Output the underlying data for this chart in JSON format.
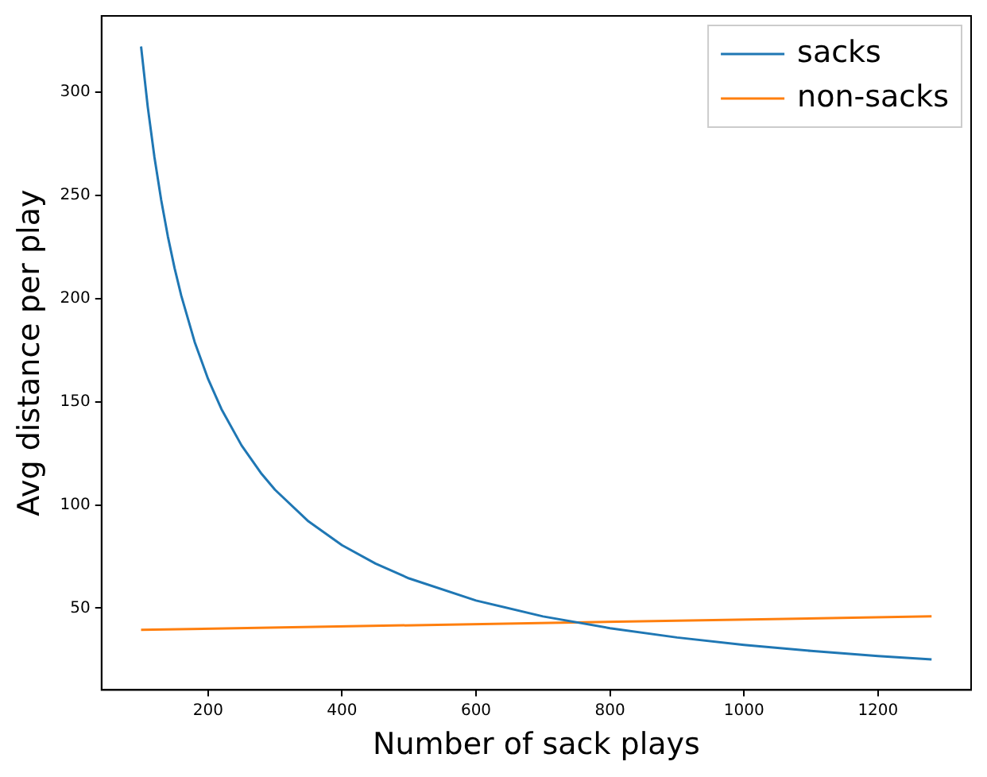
{
  "chart_data": {
    "type": "line",
    "xlabel": "Number of sack plays",
    "ylabel": "Avg distance per play",
    "series": [
      {
        "name": "sacks",
        "color": "#1f77b4",
        "x": [
          100,
          110,
          120,
          130,
          140,
          150,
          160,
          180,
          200,
          220,
          250,
          280,
          300,
          350,
          400,
          450,
          500,
          600,
          700,
          800,
          900,
          1000,
          1100,
          1200,
          1280
        ],
        "values": [
          322,
          292.7,
          268.3,
          247.7,
          230,
          214.7,
          201.3,
          178.9,
          161,
          146.4,
          128.8,
          115,
          107.3,
          92,
          80.5,
          71.6,
          64.4,
          53.7,
          46,
          40.3,
          35.8,
          32.2,
          29.3,
          26.8,
          25.2
        ]
      },
      {
        "name": "non-sacks",
        "color": "#ff7f0e",
        "x": [
          100,
          1280
        ],
        "values": [
          39.5,
          46
        ]
      }
    ],
    "xlim": [
      41,
      1339
    ],
    "xticks": [
      200,
      400,
      600,
      800,
      1000,
      1200
    ],
    "ylim": [
      10.4,
      336.8
    ],
    "yticks": [
      50,
      100,
      150,
      200,
      250,
      300
    ],
    "grid": false,
    "legend": "top right",
    "marker": "none",
    "line_style": "solid"
  }
}
